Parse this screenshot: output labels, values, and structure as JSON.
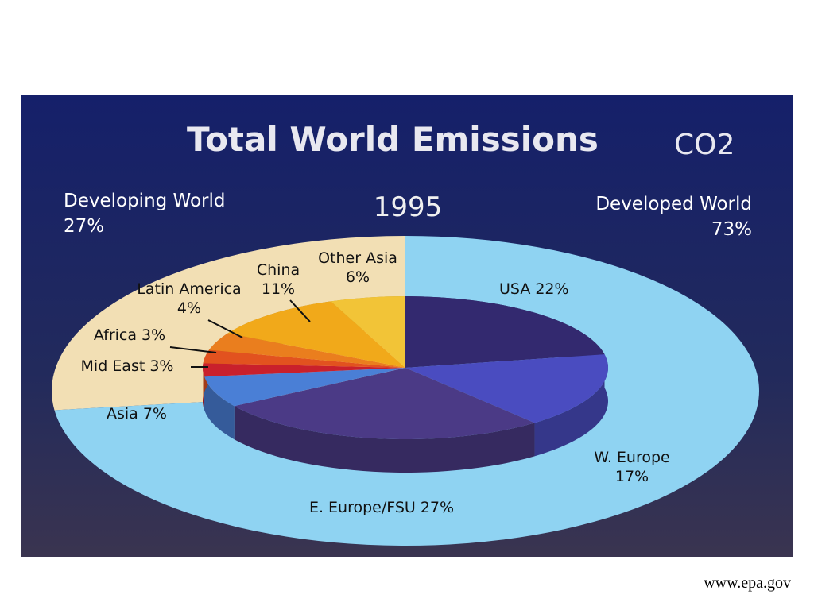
{
  "chart_data": {
    "type": "pie",
    "title": "Total World Emissions",
    "annotation": "CO2",
    "subtitle": "1995",
    "categories": [
      "USA",
      "W. Europe",
      "E. Europe/FSU",
      "Asia",
      "Mid East",
      "Africa",
      "Latin America",
      "China",
      "Other Asia"
    ],
    "values": [
      22,
      17,
      27,
      7,
      3,
      3,
      4,
      11,
      6
    ],
    "value_labels": [
      "22%",
      "17%",
      "27%",
      "7%",
      "3%",
      "3%",
      "4%",
      "11%",
      "6%"
    ],
    "colors": [
      "#33296f",
      "#4a4cc0",
      "#4b3a86",
      "#4a7fd6",
      "#c9202c",
      "#e2521f",
      "#ea7e1e",
      "#f1a91a",
      "#f2c437"
    ],
    "groups": [
      {
        "name": "Developing World",
        "value": 27,
        "value_label": "27%",
        "color": "#f2dfb4"
      },
      {
        "name": "Developed World",
        "value": 73,
        "value_label": "73%",
        "color": "#8fd3f2"
      }
    ]
  },
  "footer": {
    "source": "www.epa.gov"
  }
}
